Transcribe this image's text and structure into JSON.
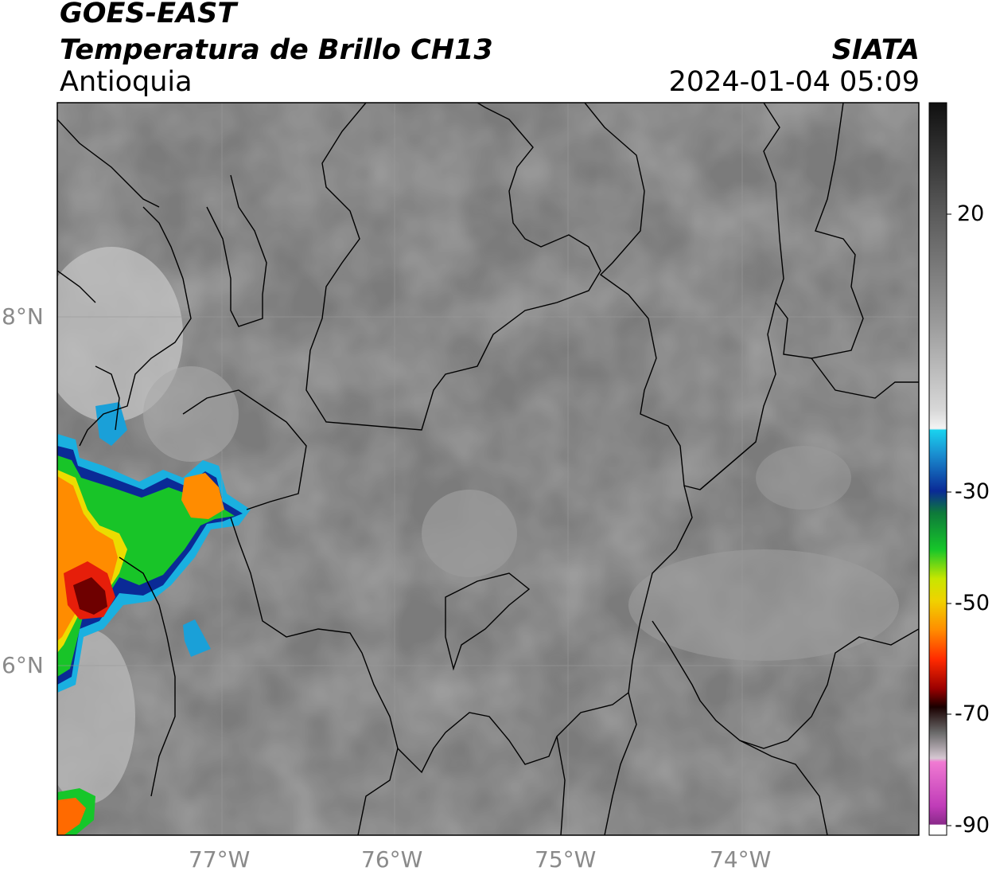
{
  "header": {
    "satellite": "GOES-EAST",
    "product": "Temperatura de Brillo CH13",
    "region": "Antioquia",
    "agency": "SIATA",
    "timestamp": "2024-01-04 05:09"
  },
  "axes": {
    "lat_ticks": [
      "8°N",
      "6°N"
    ],
    "lon_ticks": [
      "77°W",
      "76°W",
      "75°W",
      "74°W"
    ]
  },
  "colorbar": {
    "labels": [
      "20",
      "-30",
      "-50",
      "-70",
      "-90"
    ]
  },
  "colors": {
    "gray_bg": "#7a7a7a",
    "cyan": "#19c8e6",
    "blue": "#0a2a96",
    "green": "#16c62a",
    "yellow": "#f0e600",
    "orange": "#ff9600",
    "red": "#e61e0a",
    "darkred": "#6e0000",
    "magenta": "#c83cb4"
  }
}
